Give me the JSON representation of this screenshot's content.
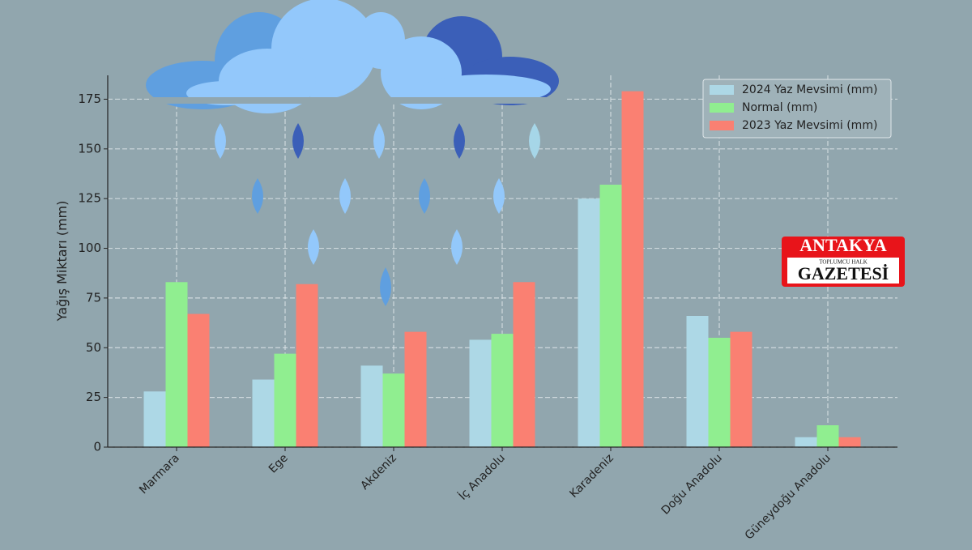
{
  "chart_data": {
    "type": "bar",
    "ylabel": "Yağış Miktarı (mm)",
    "categories": [
      "Marmara",
      "Ege",
      "Akdeniz",
      "İç Anadolu",
      "Karadeniz",
      "Doğu Anadolu",
      "Güneydoğu Anadolu"
    ],
    "series": [
      {
        "name": "2024 Yaz Mevsimi (mm)",
        "color": "#add8e6",
        "values": [
          28,
          34,
          41,
          54,
          125,
          66,
          5
        ]
      },
      {
        "name": "Normal (mm)",
        "color": "#90ee90",
        "values": [
          83,
          47,
          37,
          57,
          132,
          55,
          11
        ]
      },
      {
        "name": "2023 Yaz Mevsimi (mm)",
        "color": "#fa8072",
        "values": [
          67,
          82,
          58,
          83,
          179,
          58,
          5
        ]
      }
    ],
    "ylim": [
      0,
      187
    ],
    "yticks": [
      0,
      25,
      50,
      75,
      100,
      125,
      150,
      175
    ],
    "grid": true,
    "legend": "upper right"
  },
  "watermark": {
    "title": "ANTAKYA",
    "subtitle": "TOPLUMCU HALK",
    "name": "GAZETESİ"
  }
}
